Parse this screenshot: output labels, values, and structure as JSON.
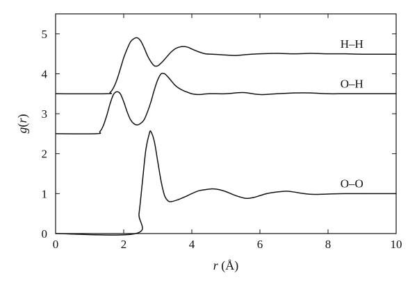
{
  "chart_data": {
    "type": "line",
    "xlabel": "r (Å)",
    "ylabel": "g(r)",
    "xlim": [
      0,
      10
    ],
    "ylim": [
      0,
      5.5
    ],
    "xticks": [
      "0",
      "2",
      "4",
      "6",
      "8",
      "10"
    ],
    "yticks": [
      "0",
      "1",
      "2",
      "3",
      "4",
      "5"
    ],
    "grid": false,
    "legend": "inline labels at right",
    "line_color": "#111111",
    "series": [
      {
        "name": "H–H",
        "x": [
          0,
          1.5,
          1.6,
          1.7,
          1.8,
          1.9,
          2.0,
          2.1,
          2.2,
          2.3,
          2.4,
          2.5,
          2.6,
          2.7,
          2.8,
          2.9,
          3.0,
          3.1,
          3.2,
          3.3,
          3.4,
          3.5,
          3.6,
          3.7,
          3.8,
          3.9,
          4.0,
          4.2,
          4.4,
          4.6,
          4.8,
          5.0,
          5.3,
          5.6,
          6.0,
          6.5,
          7.0,
          7.5,
          8.0,
          8.5,
          9.0,
          10.0
        ],
        "values": [
          3.5,
          3.5,
          3.53,
          3.65,
          3.85,
          4.12,
          4.4,
          4.62,
          4.8,
          4.88,
          4.9,
          4.82,
          4.65,
          4.45,
          4.3,
          4.2,
          4.2,
          4.27,
          4.36,
          4.46,
          4.55,
          4.62,
          4.66,
          4.68,
          4.68,
          4.66,
          4.62,
          4.55,
          4.5,
          4.49,
          4.48,
          4.47,
          4.46,
          4.48,
          4.5,
          4.51,
          4.5,
          4.51,
          4.5,
          4.5,
          4.49,
          4.49
        ]
      },
      {
        "name": "O–H",
        "x": [
          0,
          1.2,
          1.3,
          1.4,
          1.5,
          1.6,
          1.7,
          1.8,
          1.9,
          2.0,
          2.1,
          2.2,
          2.3,
          2.4,
          2.5,
          2.6,
          2.7,
          2.8,
          2.9,
          3.0,
          3.1,
          3.2,
          3.3,
          3.4,
          3.5,
          3.6,
          3.7,
          3.8,
          3.9,
          4.0,
          4.2,
          4.5,
          5.0,
          5.5,
          6.0,
          6.5,
          7.0,
          7.5,
          8.0,
          8.5,
          9.0,
          10.0
        ],
        "values": [
          2.5,
          2.5,
          2.55,
          2.7,
          2.95,
          3.25,
          3.48,
          3.55,
          3.5,
          3.3,
          3.05,
          2.85,
          2.75,
          2.72,
          2.76,
          2.85,
          3.05,
          3.3,
          3.6,
          3.85,
          4.0,
          4.0,
          3.92,
          3.82,
          3.72,
          3.65,
          3.6,
          3.56,
          3.53,
          3.5,
          3.48,
          3.5,
          3.5,
          3.53,
          3.48,
          3.5,
          3.52,
          3.52,
          3.5,
          3.5,
          3.5,
          3.5
        ]
      },
      {
        "name": "O–O",
        "x": [
          0,
          2.35,
          2.45,
          2.55,
          2.65,
          2.75,
          2.8,
          2.9,
          3.0,
          3.1,
          3.2,
          3.3,
          3.4,
          3.6,
          3.8,
          4.0,
          4.2,
          4.4,
          4.6,
          4.8,
          5.0,
          5.2,
          5.4,
          5.6,
          5.8,
          6.0,
          6.2,
          6.4,
          6.6,
          6.8,
          7.0,
          7.3,
          7.6,
          8.0,
          8.5,
          9.0,
          10.0
        ],
        "values": [
          0.0,
          0.0,
          0.5,
          1.3,
          2.1,
          2.5,
          2.55,
          2.3,
          1.8,
          1.3,
          0.95,
          0.82,
          0.8,
          0.85,
          0.92,
          1.0,
          1.07,
          1.1,
          1.12,
          1.1,
          1.05,
          0.98,
          0.92,
          0.88,
          0.9,
          0.95,
          1.0,
          1.03,
          1.05,
          1.06,
          1.04,
          1.0,
          0.98,
          0.99,
          1.0,
          1.0,
          1.0
        ]
      }
    ]
  }
}
